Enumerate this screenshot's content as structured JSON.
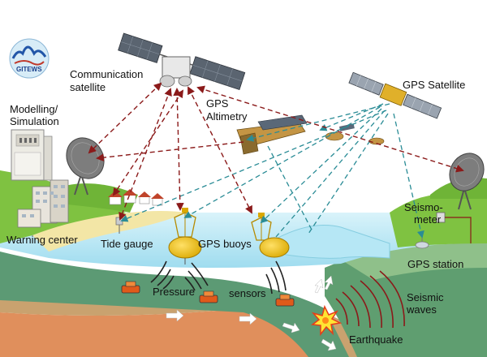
{
  "logo": {
    "text": "GITEWS",
    "name": "gitews-logo"
  },
  "labels": {
    "comm_sat_line1": "Communication",
    "comm_sat_line2": "satellite",
    "gps_sat": "GPS Satellite",
    "gps_alt_line1": "GPS",
    "gps_alt_line2": "Altimetry",
    "modelling_line1": "Modelling/",
    "modelling_line2": "Simulation",
    "warning_center": "Warning center",
    "tide_gauge": "Tide gauge",
    "gps_buoys": "GPS buoys",
    "pressure": "Pressure",
    "sensors": "sensors",
    "seismo_line1": "Seismo-",
    "seismo_line2": "meter",
    "gps_station": "GPS station",
    "seismic_line1": "Seismic",
    "seismic_line2": "waves",
    "earthquake": "Earthquake"
  },
  "colors": {
    "comm_link": "#8b1a1a",
    "gps_link": "#2a8c96",
    "sea": "#bfe8f4",
    "land_green": "#7fc241",
    "crust": "#5e9a6e",
    "mantle": "#d98a5a"
  }
}
